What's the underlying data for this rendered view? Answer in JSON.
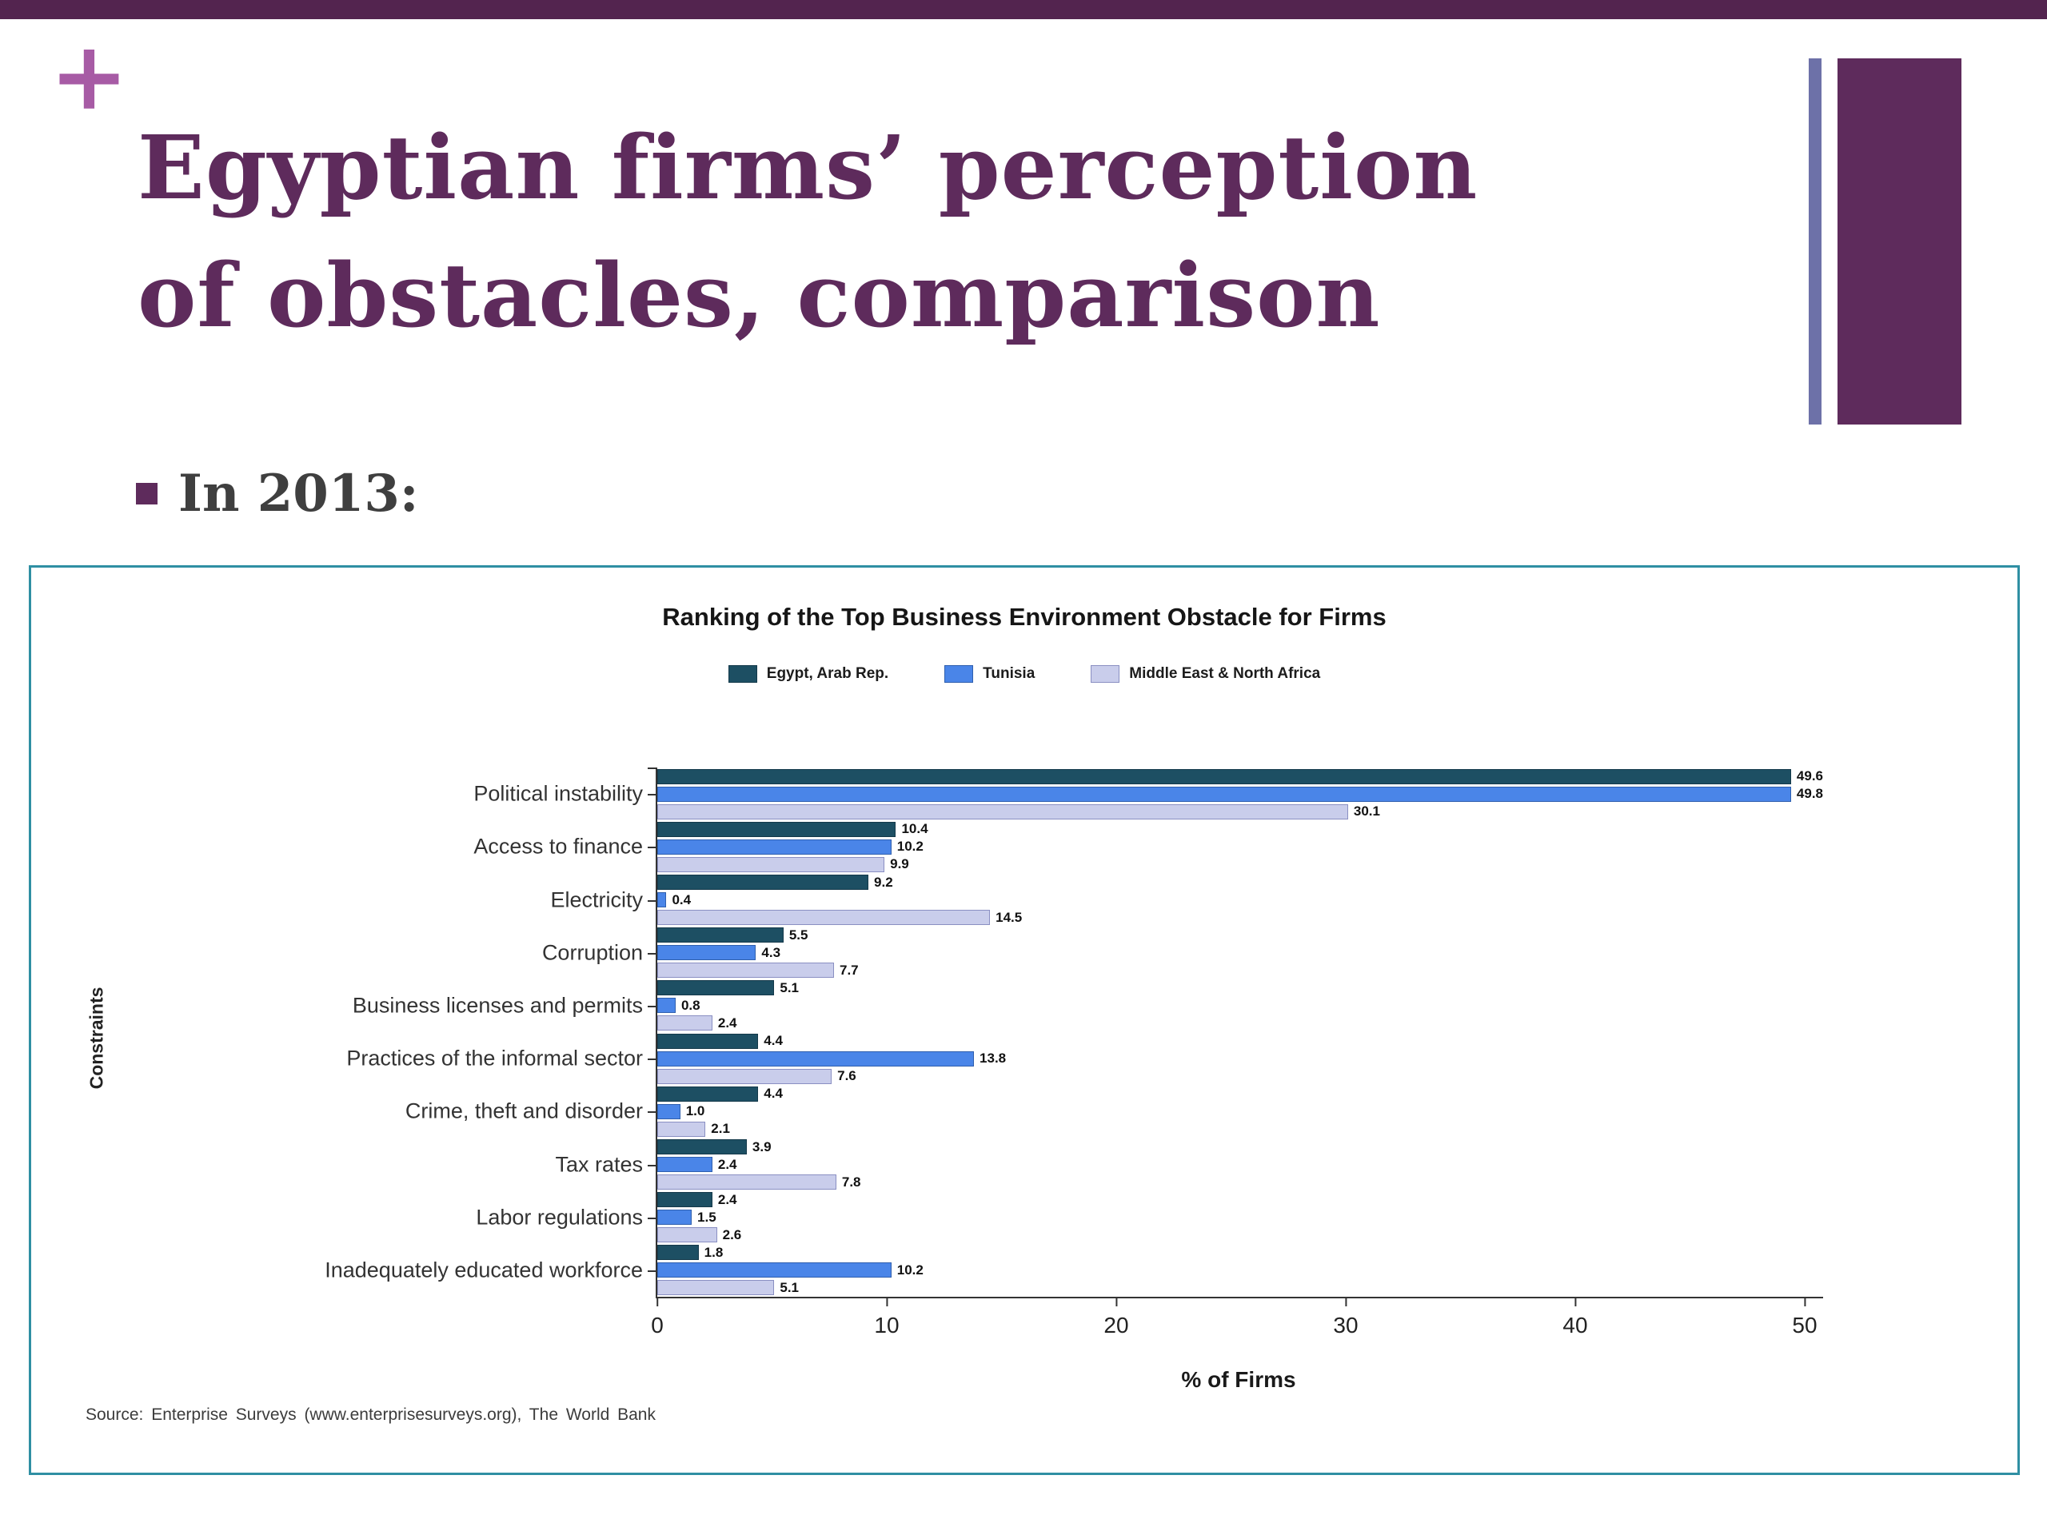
{
  "slide": {
    "plus": "+",
    "title": "Egyptian firms’ perception of obstacles, comparison",
    "bullet": "In 2013:"
  },
  "chart_data": {
    "type": "bar",
    "orientation": "horizontal",
    "title": "Ranking of the Top Business Environment Obstacle for Firms",
    "xlabel": "% of Firms",
    "ylabel": "Constraints",
    "xlim": [
      0,
      50
    ],
    "xticks": [
      0,
      10,
      20,
      30,
      40,
      50
    ],
    "grid": false,
    "legend_position": "top-center",
    "source": "Source: Enterprise Surveys (www.enterprisesurveys.org), The World Bank",
    "categories": [
      "Political instability",
      "Access to finance",
      "Electricity",
      "Corruption",
      "Business licenses and permits",
      "Practices of the informal sector",
      "Crime, theft and disorder",
      "Tax rates",
      "Labor regulations",
      "Inadequately educated workforce"
    ],
    "series": [
      {
        "name": "Egypt, Arab Rep.",
        "color": "#1d4f63",
        "border": "#14394a",
        "values": [
          49.6,
          10.4,
          9.2,
          5.5,
          5.1,
          4.4,
          4.4,
          3.9,
          2.4,
          1.8
        ]
      },
      {
        "name": "Tunisia",
        "color": "#4a85e8",
        "border": "#2f5fae",
        "values": [
          49.8,
          10.2,
          0.4,
          4.3,
          0.8,
          13.8,
          1.0,
          2.4,
          1.5,
          10.2
        ]
      },
      {
        "name": "Middle East & North Africa",
        "color": "#c9cdeb",
        "border": "#8a8fc2",
        "values": [
          30.1,
          9.9,
          14.5,
          7.7,
          2.4,
          7.6,
          2.1,
          7.8,
          2.6,
          5.1
        ]
      }
    ]
  }
}
